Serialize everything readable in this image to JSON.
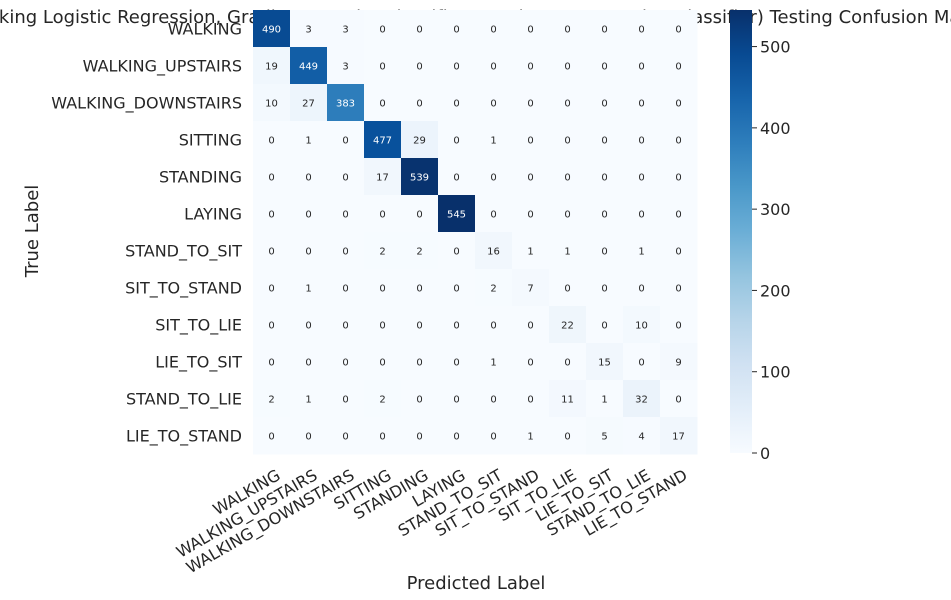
{
  "chart_data": {
    "type": "heatmap",
    "title": "Stacking Logistic Regression, GradientBoostingClassifier, RandomForest and ABclassifier) Testing Confusion Matrix",
    "xlabel": "Predicted Label",
    "ylabel": "True Label",
    "labels": [
      "WALKING",
      "WALKING_UPSTAIRS",
      "WALKING_DOWNSTAIRS",
      "SITTING",
      "STANDING",
      "LAYING",
      "STAND_TO_SIT",
      "SIT_TO_STAND",
      "SIT_TO_LIE",
      "LIE_TO_SIT",
      "STAND_TO_LIE",
      "LIE_TO_STAND"
    ],
    "matrix": [
      [
        490,
        3,
        3,
        0,
        0,
        0,
        0,
        0,
        0,
        0,
        0,
        0
      ],
      [
        19,
        449,
        3,
        0,
        0,
        0,
        0,
        0,
        0,
        0,
        0,
        0
      ],
      [
        10,
        27,
        383,
        0,
        0,
        0,
        0,
        0,
        0,
        0,
        0,
        0
      ],
      [
        0,
        1,
        0,
        477,
        29,
        0,
        1,
        0,
        0,
        0,
        0,
        0
      ],
      [
        0,
        0,
        0,
        17,
        539,
        0,
        0,
        0,
        0,
        0,
        0,
        0
      ],
      [
        0,
        0,
        0,
        0,
        0,
        545,
        0,
        0,
        0,
        0,
        0,
        0
      ],
      [
        0,
        0,
        0,
        2,
        2,
        0,
        16,
        1,
        1,
        0,
        1,
        0
      ],
      [
        0,
        1,
        0,
        0,
        0,
        0,
        2,
        7,
        0,
        0,
        0,
        0
      ],
      [
        0,
        0,
        0,
        0,
        0,
        0,
        0,
        0,
        22,
        0,
        10,
        0
      ],
      [
        0,
        0,
        0,
        0,
        0,
        0,
        1,
        0,
        0,
        15,
        0,
        9
      ],
      [
        2,
        1,
        0,
        2,
        0,
        0,
        0,
        0,
        11,
        1,
        32,
        0
      ],
      [
        0,
        0,
        0,
        0,
        0,
        0,
        0,
        1,
        0,
        5,
        4,
        17
      ]
    ],
    "colormap": "Blues",
    "color_range": [
      0,
      545
    ],
    "colorbar_ticks": [
      0,
      100,
      200,
      300,
      400,
      500
    ],
    "grid": false
  }
}
